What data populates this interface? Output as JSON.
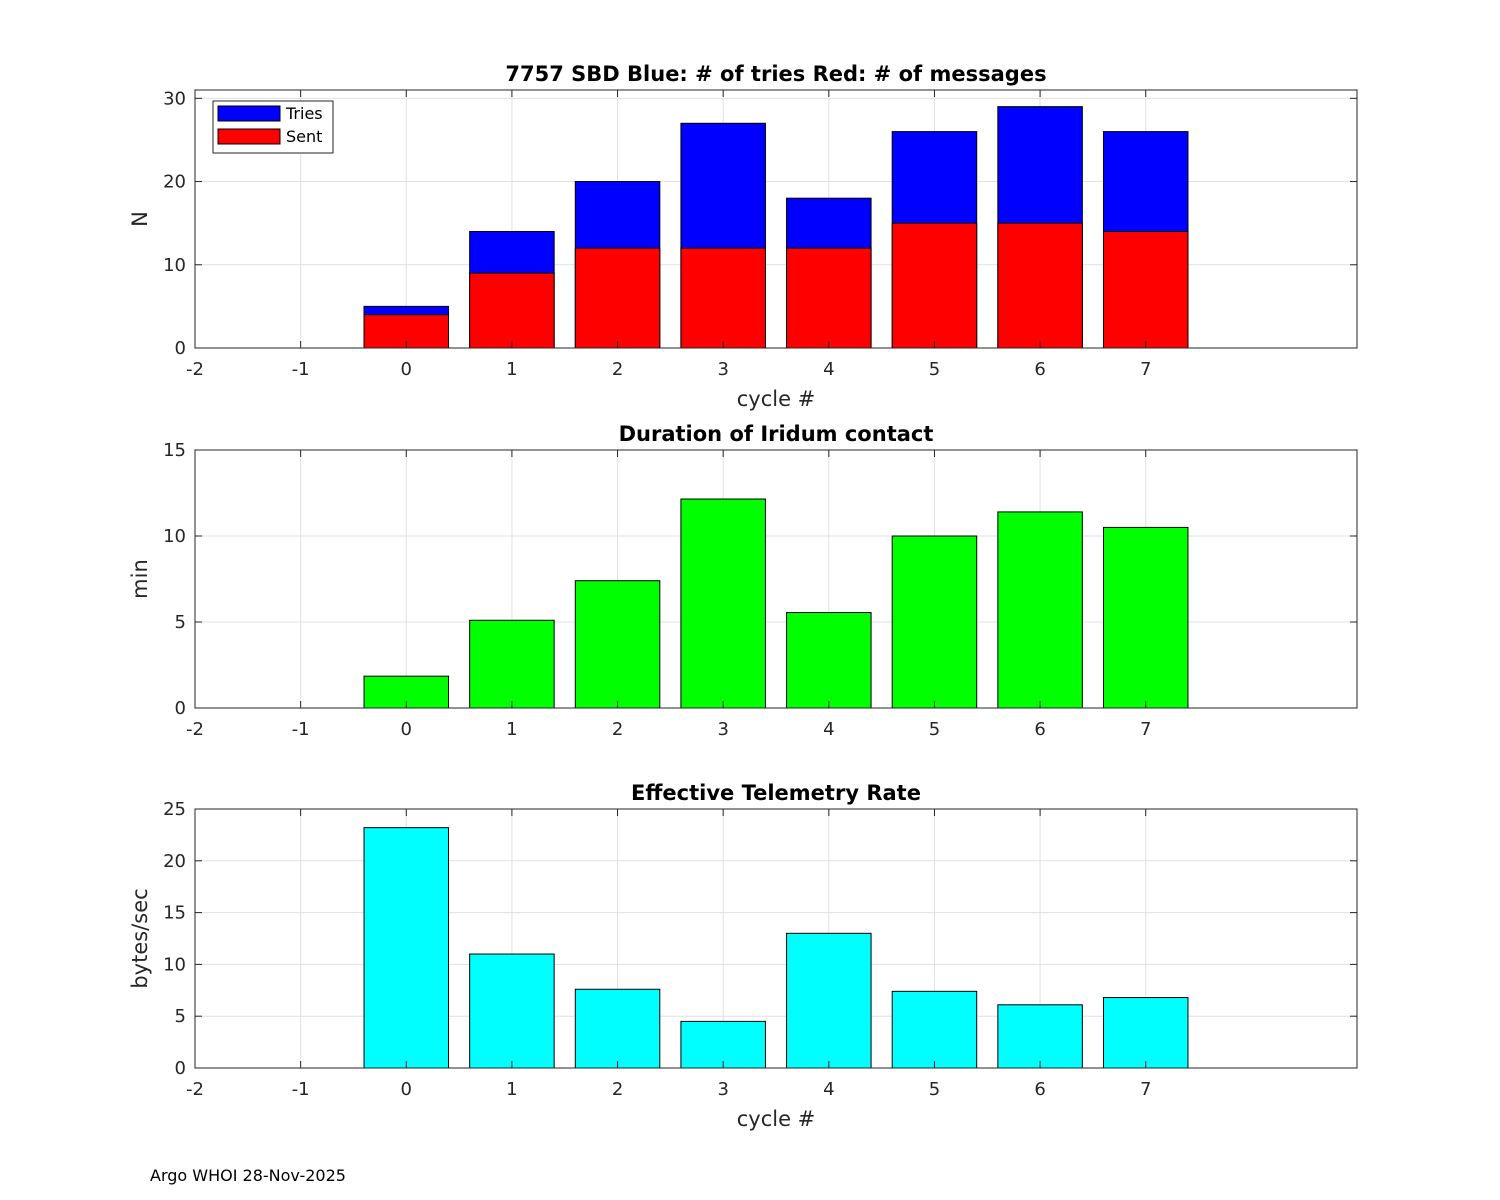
{
  "chart_data": [
    {
      "type": "bar",
      "subtype": "overlaid",
      "title": "7757 SBD  Blue: # of tries   Red: # of messages",
      "xlabel": "cycle #",
      "ylabel": "N",
      "xlim": [
        -2,
        9
      ],
      "ylim": [
        0,
        31
      ],
      "xticks": [
        -2,
        -1,
        0,
        1,
        2,
        3,
        4,
        5,
        6,
        7
      ],
      "yticks": [
        0,
        10,
        20,
        30
      ],
      "grid": true,
      "legend_position": "top-left",
      "categories": [
        0,
        1,
        2,
        3,
        4,
        5,
        6,
        7
      ],
      "series": [
        {
          "name": "Tries",
          "color": "#0000ff",
          "values": [
            5,
            14,
            20,
            27,
            18,
            26,
            29,
            26
          ]
        },
        {
          "name": "Sent",
          "color": "#ff0000",
          "values": [
            4,
            9,
            12,
            12,
            12,
            15,
            15,
            14
          ]
        }
      ]
    },
    {
      "type": "bar",
      "title": "Duration of Iridum contact",
      "xlabel": "",
      "ylabel": "min",
      "xlim": [
        -2,
        9
      ],
      "ylim": [
        0,
        15
      ],
      "xticks": [
        -2,
        -1,
        0,
        1,
        2,
        3,
        4,
        5,
        6,
        7
      ],
      "yticks": [
        0,
        5,
        10,
        15
      ],
      "grid": true,
      "categories": [
        0,
        1,
        2,
        3,
        4,
        5,
        6,
        7
      ],
      "series": [
        {
          "name": "Duration",
          "color": "#00ff00",
          "values": [
            1.85,
            5.1,
            7.4,
            12.15,
            5.55,
            10.0,
            11.4,
            10.5
          ]
        }
      ]
    },
    {
      "type": "bar",
      "title": "Effective Telemetry Rate",
      "xlabel": "cycle #",
      "ylabel": "bytes/sec",
      "xlim": [
        -2,
        9
      ],
      "ylim": [
        0,
        25
      ],
      "xticks": [
        -2,
        -1,
        0,
        1,
        2,
        3,
        4,
        5,
        6,
        7
      ],
      "yticks": [
        0,
        5,
        10,
        15,
        20,
        25
      ],
      "grid": true,
      "categories": [
        0,
        1,
        2,
        3,
        4,
        5,
        6,
        7
      ],
      "series": [
        {
          "name": "Rate",
          "color": "#00ffff",
          "values": [
            23.2,
            11.0,
            7.6,
            4.5,
            13.0,
            7.4,
            6.1,
            6.8
          ]
        }
      ]
    }
  ],
  "footer": "Argo WHOI 28-Nov-2025"
}
